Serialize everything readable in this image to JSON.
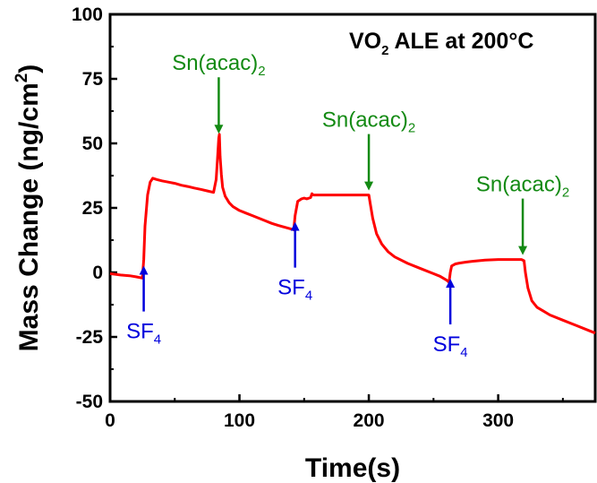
{
  "chart_data": {
    "type": "line",
    "title": {
      "main": "VO",
      "sub": "2",
      "rest": " ALE at 200°C"
    },
    "xlabel": "Time(s)",
    "ylabel": {
      "main": "Mass Change (ng/cm",
      "sup": "2",
      "end": ")"
    },
    "xlim": [
      0,
      375
    ],
    "ylim": [
      -50,
      100
    ],
    "xticks": [
      0,
      100,
      200,
      300
    ],
    "yticks": [
      100,
      75,
      50,
      25,
      0,
      -25,
      -50
    ],
    "grid": false,
    "line_color": "#ff0000",
    "series": [
      {
        "x": [
          0,
          8,
          15,
          20,
          25,
          26,
          27,
          29,
          31,
          33,
          36,
          40,
          45,
          50,
          55,
          60,
          65,
          70,
          75,
          80,
          82,
          83,
          84,
          84.5,
          85,
          86,
          87,
          89,
          92,
          95,
          100,
          105,
          110,
          115,
          120,
          125,
          130,
          135,
          140,
          142,
          143,
          145,
          148,
          150,
          152,
          155,
          156,
          157,
          160,
          170,
          180,
          190,
          195,
          200,
          201,
          203,
          206,
          210,
          215,
          220,
          230,
          240,
          250,
          255,
          260,
          262,
          263,
          264,
          267,
          270,
          275,
          280,
          290,
          300,
          310,
          318,
          320,
          321,
          323,
          326,
          330,
          335,
          340,
          350,
          360,
          370,
          375
        ],
        "y": [
          -0.5,
          -1,
          -1.3,
          -1.7,
          -2.2,
          5,
          18,
          30,
          35,
          36.5,
          36,
          35.5,
          35,
          34.5,
          33.8,
          33.3,
          32.7,
          32.2,
          31.6,
          31,
          36,
          44,
          52,
          53.5,
          45,
          38,
          33,
          29.5,
          27,
          25.5,
          24,
          23,
          22,
          21,
          20,
          19,
          18.2,
          17.5,
          16.8,
          16.5,
          22,
          27.5,
          28.5,
          28.8,
          28.5,
          29,
          30.5,
          30,
          30,
          30,
          30,
          30,
          30,
          30,
          27,
          21,
          15,
          11,
          8,
          6,
          3.5,
          1.5,
          -0.5,
          -1.5,
          -3,
          -3.8,
          0,
          2.5,
          3.3,
          3.6,
          4,
          4.3,
          4.8,
          5,
          5,
          5,
          4.5,
          0,
          -6,
          -11,
          -13.5,
          -15,
          -16.5,
          -18.5,
          -20.5,
          -22.5,
          -23.5
        ]
      }
    ],
    "annotations": [
      {
        "x": 26,
        "direction": "up",
        "color": "#0000dd",
        "label_main": "SF",
        "label_sub": "4"
      },
      {
        "x": 143,
        "direction": "up",
        "color": "#0000dd",
        "label_main": "SF",
        "label_sub": "4"
      },
      {
        "x": 263,
        "direction": "up",
        "color": "#0000dd",
        "label_main": "SF",
        "label_sub": "4"
      },
      {
        "x": 84,
        "direction": "down",
        "color": "#138a13",
        "label_main": "Sn(acac)",
        "label_sub": "2"
      },
      {
        "x": 200,
        "direction": "down",
        "color": "#138a13",
        "label_main": "Sn(acac)",
        "label_sub": "2"
      },
      {
        "x": 319,
        "direction": "down",
        "color": "#138a13",
        "label_main": "Sn(acac)",
        "label_sub": "2"
      }
    ]
  }
}
